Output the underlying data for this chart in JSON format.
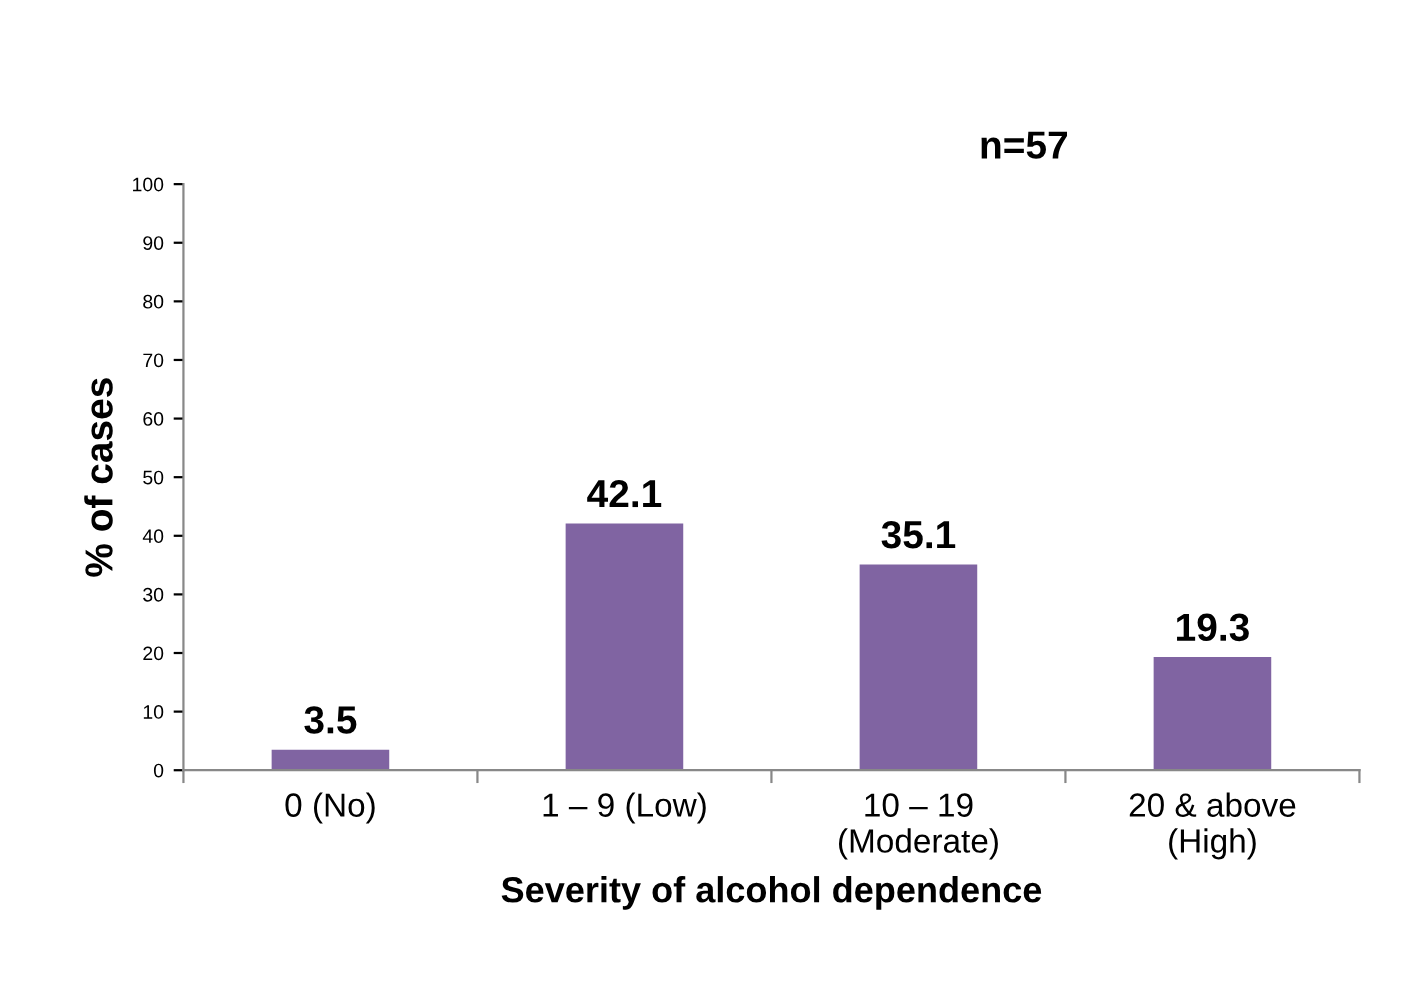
{
  "chart_data": {
    "type": "bar",
    "xlabel": "Severity of alcohol dependence",
    "ylabel": "% of cases",
    "categories": [
      "0 (No)",
      "1 – 9 (Low)",
      "10 – 19\n(Moderate)",
      "20 & above\n(High)"
    ],
    "values": [
      3.5,
      42.1,
      35.1,
      19.3
    ],
    "color": "#8064a2",
    "ylim": [
      0,
      100
    ],
    "yticks": [
      0,
      10,
      20,
      30,
      40,
      50,
      60,
      70,
      80,
      90,
      100
    ],
    "data_labels": true,
    "grid": false,
    "legend": false,
    "annotations": [
      "n=57"
    ]
  }
}
